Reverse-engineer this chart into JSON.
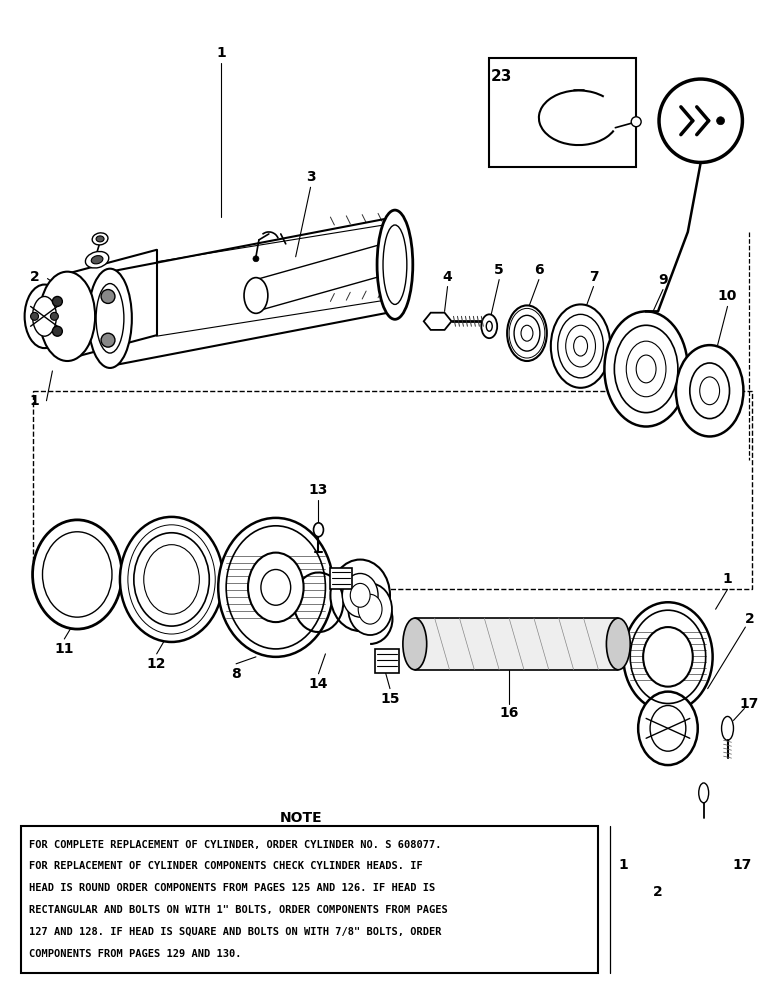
{
  "background_color": "#ffffff",
  "note_title": "NOTE",
  "note_text_lines": [
    "FOR COMPLETE REPLACEMENT OF CYLINDER, ORDER CYLINDER NO. S 608077.",
    "FOR REPLACEMENT OF CYLINDER COMPONENTS CHECK CYLINDER HEADS. IF",
    "HEAD IS ROUND ORDER COMPONENTS FROM PAGES 125 AND 126. IF HEAD IS",
    "RECTANGULAR AND BOLTS ON WITH 1\" BOLTS, ORDER COMPONENTS FROM PAGES",
    "127 AND 128. IF HEAD IS SQUARE AND BOLTS ON WITH 7/8\" BOLTS, ORDER",
    "COMPONENTS FROM PAGES 129 AND 130."
  ],
  "fig_width": 7.72,
  "fig_height": 10.0,
  "dpi": 100,
  "black": "#000000",
  "gray_light": "#dddddd",
  "gray_mid": "#aaaaaa",
  "gray_dark": "#666666"
}
